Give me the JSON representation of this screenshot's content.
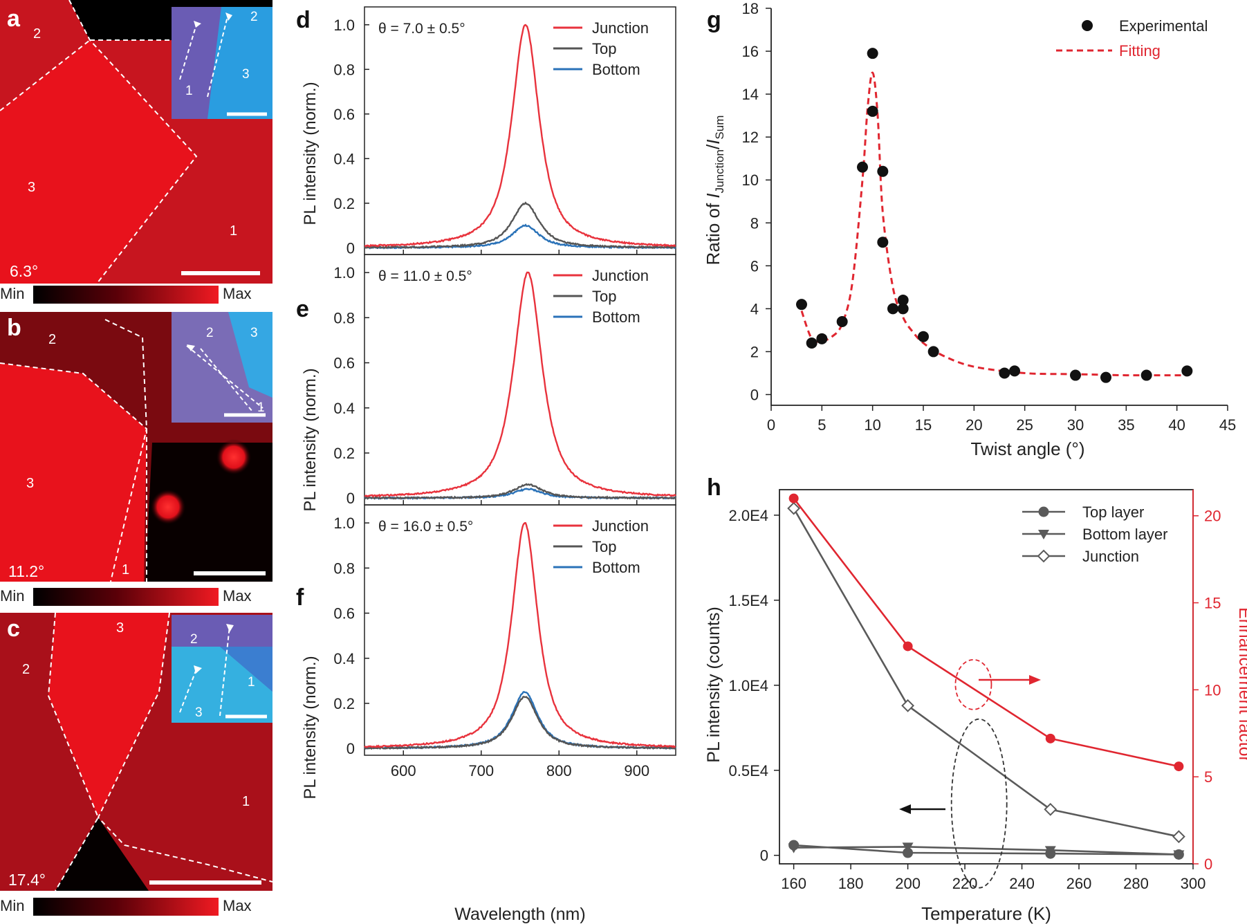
{
  "panel_letters": {
    "a": "a",
    "b": "b",
    "c": "c",
    "d": "d",
    "e": "e",
    "f": "f",
    "g": "g",
    "h": "h"
  },
  "maps": [
    {
      "letter": "a",
      "angle": "6.3°",
      "regions": {
        "r1": "1",
        "r2": "2",
        "r3": "3"
      },
      "inset": {
        "r1": "1",
        "r2": "2",
        "r3": "3"
      },
      "colorbar": {
        "min": "Min",
        "max": "Max"
      }
    },
    {
      "letter": "b",
      "angle": "11.2°",
      "regions": {
        "r1": "1",
        "r2": "2",
        "r3": "3"
      },
      "inset": {
        "r1": "1",
        "r2": "2",
        "r3": "3"
      },
      "colorbar": {
        "min": "Min",
        "max": "Max"
      }
    },
    {
      "letter": "c",
      "angle": "17.4°",
      "regions": {
        "r1": "1",
        "r2": "2",
        "r3": "3"
      },
      "inset": {
        "r1": "1",
        "r2": "2",
        "r3": "3"
      },
      "colorbar": {
        "min": "Min",
        "max": "Max"
      }
    }
  ],
  "colors": {
    "junction": "#e8323c",
    "top": "#555555",
    "bottom": "#2a72b8",
    "fit": "#e02630",
    "exp": "#111111",
    "map_red": "#e3101c"
  },
  "chart_data": [
    {
      "panel": "d",
      "type": "line",
      "annotation": "θ = 7.0 ± 0.5°",
      "peak_nm": 757,
      "fwhm_nm": 42,
      "series": [
        {
          "name": "Junction",
          "amplitude": 1.0
        },
        {
          "name": "Top",
          "amplitude": 0.2
        },
        {
          "name": "Bottom",
          "amplitude": 0.1
        }
      ],
      "xlim": [
        550,
        950
      ],
      "ylim": [
        -0.03,
        1.08
      ],
      "xticks": [
        600,
        700,
        800,
        900
      ],
      "yticks": [
        0,
        0.2,
        0.4,
        0.6,
        0.8,
        1.0
      ],
      "ytick_labels": [
        "0",
        "0.2",
        "0.4",
        "0.6",
        "0.8",
        "1.0"
      ],
      "ylabel": "PL intensity (norm.)",
      "xlabel": ""
    },
    {
      "panel": "e",
      "type": "line",
      "annotation": "θ = 11.0 ± 0.5°",
      "peak_nm": 760,
      "fwhm_nm": 44,
      "series": [
        {
          "name": "Junction",
          "amplitude": 1.0
        },
        {
          "name": "Top",
          "amplitude": 0.06
        },
        {
          "name": "Bottom",
          "amplitude": 0.04
        }
      ],
      "xlim": [
        550,
        950
      ],
      "ylim": [
        -0.03,
        1.08
      ],
      "xticks": [
        600,
        700,
        800,
        900
      ],
      "yticks": [
        0,
        0.2,
        0.4,
        0.6,
        0.8,
        1.0
      ],
      "ytick_labels": [
        "0",
        "0.2",
        "0.4",
        "0.6",
        "0.8",
        "1.0"
      ],
      "ylabel": "PL intensity (norm.)",
      "xlabel": ""
    },
    {
      "panel": "f",
      "type": "line",
      "annotation": "θ = 16.0 ± 0.5°",
      "peak_nm": 756,
      "fwhm_nm": 40,
      "series": [
        {
          "name": "Junction",
          "amplitude": 1.0
        },
        {
          "name": "Top",
          "amplitude": 0.23
        },
        {
          "name": "Bottom",
          "amplitude": 0.25
        }
      ],
      "xlim": [
        550,
        950
      ],
      "ylim": [
        -0.03,
        1.08
      ],
      "xticks": [
        600,
        700,
        800,
        900
      ],
      "xtick_labels": [
        "600",
        "700",
        "800",
        "900"
      ],
      "yticks": [
        0,
        0.2,
        0.4,
        0.6,
        0.8,
        1.0
      ],
      "ytick_labels": [
        "0",
        "0.2",
        "0.4",
        "0.6",
        "0.8",
        "1.0"
      ],
      "ylabel": "PL intensity (norm.)",
      "xlabel": "Wavelength (nm)"
    },
    {
      "panel": "g",
      "type": "scatter",
      "xlabel": "Twist angle (°)",
      "ylabel_prefix": "Ratio of ",
      "ylabel_i": "I",
      "ylabel_sub1": "Junction",
      "ylabel_slash": "/",
      "ylabel_sub2": "Sum",
      "xlim": [
        0,
        45
      ],
      "ylim": [
        -0.5,
        18
      ],
      "xticks": [
        0,
        5,
        10,
        15,
        20,
        25,
        30,
        35,
        40,
        45
      ],
      "yticks": [
        0,
        2,
        4,
        6,
        8,
        10,
        12,
        14,
        16,
        18
      ],
      "experimental": {
        "name": "Experimental",
        "x": [
          3,
          4,
          5,
          7,
          9,
          10,
          10,
          11,
          11,
          12,
          13,
          13,
          15,
          16,
          23,
          24,
          30,
          33,
          37,
          41
        ],
        "y": [
          4.2,
          2.4,
          2.6,
          3.4,
          10.6,
          15.9,
          13.2,
          10.4,
          7.1,
          4.0,
          4.4,
          4.0,
          2.7,
          2.0,
          1.0,
          1.1,
          0.9,
          0.8,
          0.9,
          1.1
        ]
      },
      "fitting": {
        "name": "Fitting",
        "x": [
          3,
          4,
          5,
          6,
          7,
          8,
          9,
          9.5,
          10,
          10.5,
          11,
          12,
          13,
          14,
          15,
          17,
          20,
          25,
          30,
          35,
          41
        ],
        "y": [
          3.9,
          2.6,
          2.5,
          2.7,
          3.3,
          5.2,
          10.0,
          13.3,
          15.0,
          13.0,
          8.5,
          5.0,
          3.6,
          2.9,
          2.4,
          1.8,
          1.3,
          1.0,
          0.95,
          0.9,
          0.9
        ]
      }
    },
    {
      "panel": "h",
      "type": "line",
      "xlabel": "Temperature (K)",
      "ylabel_left": "PL intensity (counts)",
      "ylabel_right": "Enhancement factor",
      "x": [
        160,
        200,
        250,
        295
      ],
      "xlim": [
        155,
        300
      ],
      "xticks": [
        160,
        180,
        200,
        220,
        240,
        260,
        280,
        300
      ],
      "ylim_left": [
        -500,
        21500
      ],
      "yticks_left": [
        0,
        5000,
        10000,
        15000,
        20000
      ],
      "ytick_labels_left": [
        "0",
        "0.5E4",
        "1.0E4",
        "1.5E4",
        "2.0E4"
      ],
      "ylim_right": [
        0,
        21.5
      ],
      "yticks_right": [
        0,
        5,
        10,
        15,
        20
      ],
      "series": [
        {
          "name": "Top layer",
          "values": [
            600,
            150,
            100,
            50
          ],
          "axis": "left"
        },
        {
          "name": "Bottom layer",
          "values": [
            450,
            500,
            300,
            50
          ],
          "axis": "left"
        },
        {
          "name": "Junction",
          "values": [
            20400,
            8800,
            2700,
            1100
          ],
          "axis": "left"
        },
        {
          "name": "Enhancement factor",
          "values": [
            21.0,
            12.5,
            7.2,
            5.6
          ],
          "axis": "right"
        }
      ]
    }
  ]
}
